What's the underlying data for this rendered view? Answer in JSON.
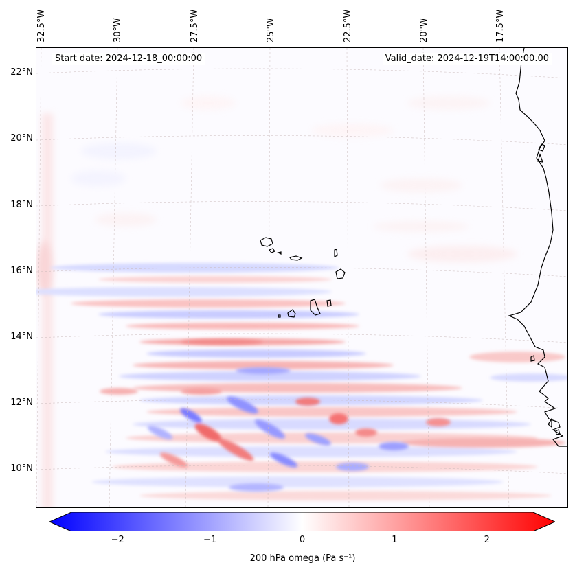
{
  "map": {
    "start_date_text": "Start date: 2024-12-18_00:00:00",
    "valid_date_text": "Valid_date: 2024-12-19T14:00:00.00",
    "longitude_labels": [
      "32.5°W",
      "30°W",
      "27.5°W",
      "25°W",
      "22.5°W",
      "20°W",
      "17.5°W"
    ],
    "latitude_labels": [
      "22°N",
      "20°N",
      "18°N",
      "16°N",
      "14°N",
      "12°N",
      "10°N"
    ],
    "extent": {
      "lon_min": -32.6,
      "lon_max": -15.2,
      "lat_min": 8.9,
      "lat_max": 22.8
    },
    "features": [
      "Cape Verde Islands",
      "West African coastline"
    ]
  },
  "colorbar": {
    "label": "200 hPa omega (Pa s⁻¹)",
    "tick_labels": [
      "−2",
      "−1",
      "0",
      "1",
      "2"
    ],
    "tick_values": [
      -2,
      -1,
      0,
      1,
      2
    ],
    "range": [
      -2.5,
      2.5
    ],
    "colormap": "bwr",
    "color_min": "#0000ff",
    "color_mid": "#ffffff",
    "color_max": "#ff0000",
    "extend": "both"
  }
}
